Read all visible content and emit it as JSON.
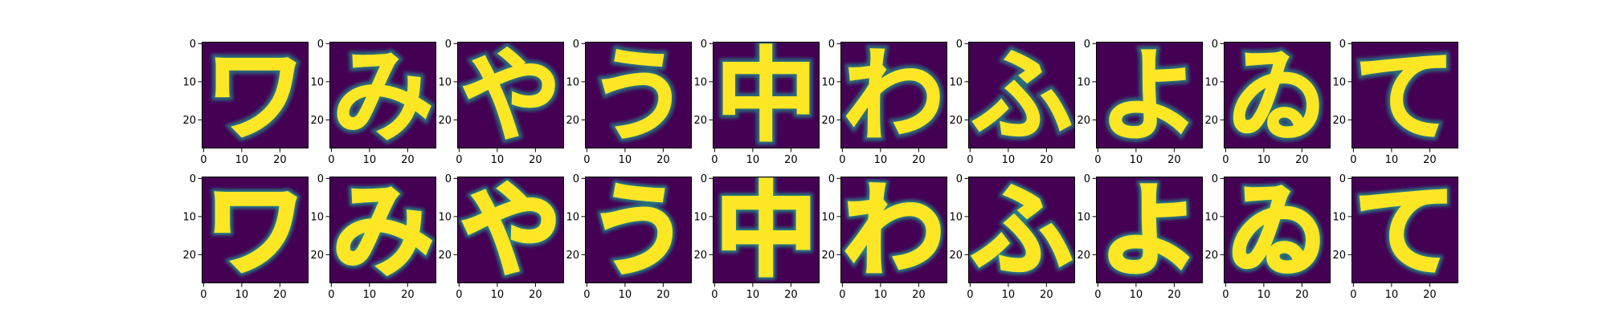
{
  "chart_data": {
    "type": "heatmap",
    "description_visible": "",
    "grid": {
      "rows": 2,
      "cols": 10
    },
    "panels_per_row": 10,
    "image_size": [
      28,
      28
    ],
    "xlim": [
      0,
      27
    ],
    "ylim": [
      27,
      0
    ],
    "x_ticks": [
      0,
      10,
      20
    ],
    "y_ticks": [
      0,
      10,
      20
    ],
    "x_tick_labels": [
      "0",
      "10",
      "20"
    ],
    "y_tick_labels": [
      "0",
      "10",
      "20"
    ],
    "colormap": "viridis",
    "colors": {
      "low": "#440154",
      "mid": "#21918c",
      "high": "#fde725"
    },
    "grid_lines": false,
    "legend": "none",
    "rows": [
      {
        "name": "",
        "panels": [
          {
            "glyph": "ワ"
          },
          {
            "glyph": "み"
          },
          {
            "glyph": "や"
          },
          {
            "glyph": "う"
          },
          {
            "glyph": "中"
          },
          {
            "glyph": "わ"
          },
          {
            "glyph": "ふ"
          },
          {
            "glyph": "よ"
          },
          {
            "glyph": "ゐ"
          },
          {
            "glyph": "て"
          }
        ]
      },
      {
        "name": "",
        "panels": [
          {
            "glyph": "ワ"
          },
          {
            "glyph": "み"
          },
          {
            "glyph": "や"
          },
          {
            "glyph": "う"
          },
          {
            "glyph": "中"
          },
          {
            "glyph": "わ"
          },
          {
            "glyph": "ふ"
          },
          {
            "glyph": "よ"
          },
          {
            "glyph": "ゐ"
          },
          {
            "glyph": "て"
          }
        ]
      }
    ]
  }
}
